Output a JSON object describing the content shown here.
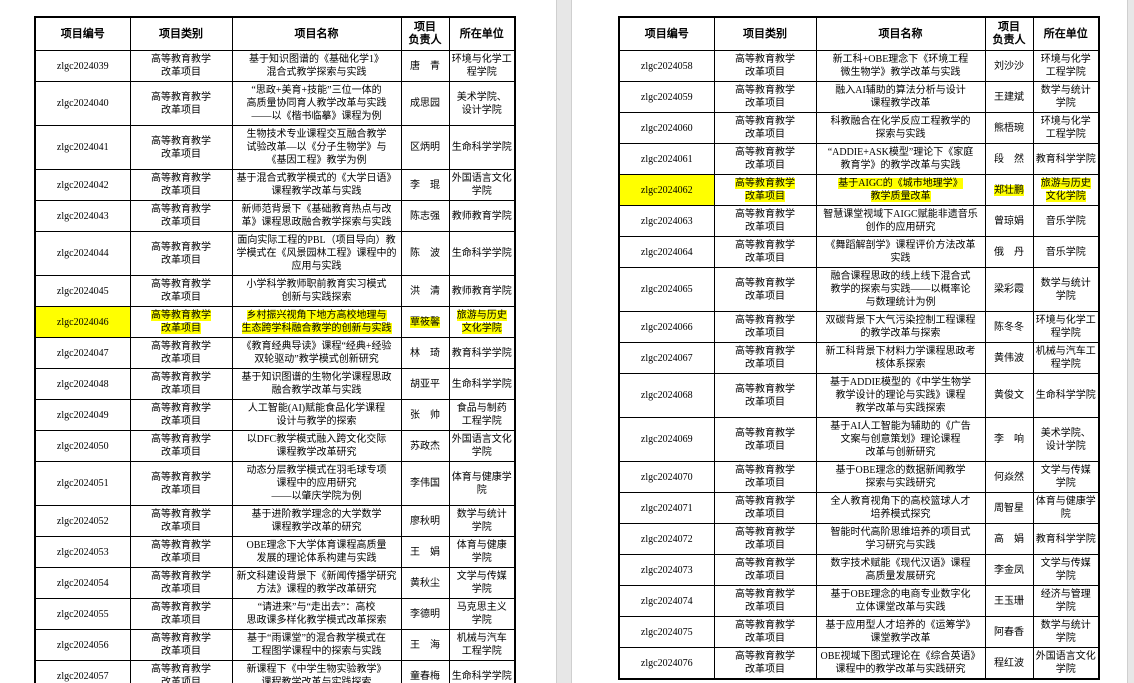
{
  "colors": {
    "highlight": "#ffff00",
    "table_border": "#000000",
    "page_background": "#ffffff",
    "divider": "#e7e7e7"
  },
  "columns": [
    "项目编号",
    "项目类别",
    "项目名称",
    "项目\n负责人",
    "所在单位"
  ],
  "pages": [
    {
      "name": "page-1",
      "rows": [
        {
          "id": "zlgc2024039",
          "category": "高等教育教学\n改革项目",
          "name": "基于知识图谱的《基础化学1》\n混合式教学探索与实践",
          "leader": "唐　青",
          "unit": "环境与化学工\n程学院",
          "highlighted": false
        },
        {
          "id": "zlgc2024040",
          "category": "高等教育教学\n改革项目",
          "name": "“思政+美育+技能”三位一体的\n高质量协同育人教学改革与实践\n——以《楷书临摹》课程为例",
          "leader": "成思园",
          "unit": "美术学院、\n设计学院",
          "highlighted": false
        },
        {
          "id": "zlgc2024041",
          "category": "高等教育教学\n改革项目",
          "name": "生物技术专业课程交互融合教学\n试验改革—以《分子生物学》与\n《基因工程》教学为例",
          "leader": "区炳明",
          "unit": "生命科学学院",
          "highlighted": false
        },
        {
          "id": "zlgc2024042",
          "category": "高等教育教学\n改革项目",
          "name": "基于混合式教学模式的《大学日语》\n课程教学改革与实践",
          "leader": "李　琨",
          "unit": "外国语言文化\n学院",
          "highlighted": false
        },
        {
          "id": "zlgc2024043",
          "category": "高等教育教学\n改革项目",
          "name": "新师范背景下《基础教育热点与改\n革》课程思政融合教学探索与实践",
          "leader": "陈志强",
          "unit": "教师教育学院",
          "highlighted": false
        },
        {
          "id": "zlgc2024044",
          "category": "高等教育教学\n改革项目",
          "name": "面向实际工程的PBL（项目导向）教\n学模式在《风景园林工程》课程中的\n应用与实践",
          "leader": "陈　波",
          "unit": "生命科学学院",
          "highlighted": false
        },
        {
          "id": "zlgc2024045",
          "category": "高等教育教学\n改革项目",
          "name": "小学科学教师职前教育实习模式\n创新与实践探索",
          "leader": "洪　清",
          "unit": "教师教育学院",
          "highlighted": false
        },
        {
          "id": "zlgc2024046",
          "category": "高等教育教学\n改革项目",
          "name": "乡村振兴视角下地方高校地理与\n生态跨学科融合教学的创新与实践",
          "leader": "覃筱馨",
          "unit": "旅游与历史\n文化学院",
          "highlighted": true
        },
        {
          "id": "zlgc2024047",
          "category": "高等教育教学\n改革项目",
          "name": "《教育经典导读》课程“经典+经验\n双轮驱动”教学模式创新研究",
          "leader": "林　琦",
          "unit": "教育科学学院",
          "highlighted": false
        },
        {
          "id": "zlgc2024048",
          "category": "高等教育教学\n改革项目",
          "name": "基于知识图谱的生物化学课程思政\n融合教学改革与实践",
          "leader": "胡亚平",
          "unit": "生命科学学院",
          "highlighted": false
        },
        {
          "id": "zlgc2024049",
          "category": "高等教育教学\n改革项目",
          "name": "人工智能(AI)赋能食品化学课程\n设计与教学的探索",
          "leader": "张　帅",
          "unit": "食品与制药\n工程学院",
          "highlighted": false
        },
        {
          "id": "zlgc2024050",
          "category": "高等教育教学\n改革项目",
          "name": "以DFC教学模式融入跨文化交际\n课程教学改革研究",
          "leader": "苏政杰",
          "unit": "外国语言文化\n学院",
          "highlighted": false
        },
        {
          "id": "zlgc2024051",
          "category": "高等教育教学\n改革项目",
          "name": "动态分层教学模式在羽毛球专项\n课程中的应用研究\n——以肇庆学院为例",
          "leader": "李伟国",
          "unit": "体育与健康学\n院",
          "highlighted": false
        },
        {
          "id": "zlgc2024052",
          "category": "高等教育教学\n改革项目",
          "name": "基于进阶教学理念的大学数学\n课程教学改革的研究",
          "leader": "廖秋明",
          "unit": "数学与统计\n学院",
          "highlighted": false
        },
        {
          "id": "zlgc2024053",
          "category": "高等教育教学\n改革项目",
          "name": "OBE理念下大学体育课程高质量\n发展的理论体系构建与实践",
          "leader": "王　娟",
          "unit": "体育与健康\n学院",
          "highlighted": false
        },
        {
          "id": "zlgc2024054",
          "category": "高等教育教学\n改革项目",
          "name": "新文科建设背景下《新闻传播学研究\n方法》课程的教学改革研究",
          "leader": "黄秋尘",
          "unit": "文学与传媒\n学院",
          "highlighted": false
        },
        {
          "id": "zlgc2024055",
          "category": "高等教育教学\n改革项目",
          "name": "“请进来”与“走出去”：高校\n思政课多样化教学模式改革探索",
          "leader": "李德明",
          "unit": "马克思主义\n学院",
          "highlighted": false
        },
        {
          "id": "zlgc2024056",
          "category": "高等教育教学\n改革项目",
          "name": "基于“雨课堂”的混合教学模式在\n工程图学课程中的探索与实践",
          "leader": "王　海",
          "unit": "机械与汽车\n工程学院",
          "highlighted": false
        },
        {
          "id": "zlgc2024057",
          "category": "高等教育教学\n改革项目",
          "name": "新课程下《中学生物实验教学》\n课程教学改革与实践探索",
          "leader": "童春梅",
          "unit": "生命科学学院",
          "highlighted": false
        }
      ]
    },
    {
      "name": "page-2",
      "rows": [
        {
          "id": "zlgc2024058",
          "category": "高等教育教学\n改革项目",
          "name": "新工科+OBE理念下《环境工程\n微生物学》教学改革与实践",
          "leader": "刘沙沙",
          "unit": "环境与化学\n工程学院",
          "highlighted": false
        },
        {
          "id": "zlgc2024059",
          "category": "高等教育教学\n改革项目",
          "name": "融入AI辅助的算法分析与设计\n课程教学改革",
          "leader": "王建斌",
          "unit": "数学与统计\n学院",
          "highlighted": false
        },
        {
          "id": "zlgc2024060",
          "category": "高等教育教学\n改革项目",
          "name": "科教融合在化学反应工程教学的\n探索与实践",
          "leader": "熊梧琬",
          "unit": "环境与化学\n工程学院",
          "highlighted": false
        },
        {
          "id": "zlgc2024061",
          "category": "高等教育教学\n改革项目",
          "name": "“ADDIE+ASK模型”理论下《家庭\n教育学》的教学改革与实践",
          "leader": "段　然",
          "unit": "教育科学学院",
          "highlighted": false
        },
        {
          "id": "zlgc2024062",
          "category": "高等教育教学\n改革项目",
          "name": "基于AIGC的《城市地理学》\n教学质量改革",
          "leader": "郑壮鹏",
          "unit": "旅游与历史\n文化学院",
          "highlighted": true
        },
        {
          "id": "zlgc2024063",
          "category": "高等教育教学\n改革项目",
          "name": "智慧课堂视域下AIGC赋能非遗音乐\n创作的应用研究",
          "leader": "曾琼娟",
          "unit": "音乐学院",
          "highlighted": false
        },
        {
          "id": "zlgc2024064",
          "category": "高等教育教学\n改革项目",
          "name": "《舞蹈解剖学》课程评价方法改革\n实践",
          "leader": "俄　丹",
          "unit": "音乐学院",
          "highlighted": false
        },
        {
          "id": "zlgc2024065",
          "category": "高等教育教学\n改革项目",
          "name": "融合课程思政的线上线下混合式\n教学的探索与实践——以概率论\n与数理统计为例",
          "leader": "梁彩霞",
          "unit": "数学与统计\n学院",
          "highlighted": false
        },
        {
          "id": "zlgc2024066",
          "category": "高等教育教学\n改革项目",
          "name": "双碳背景下大气污染控制工程课程\n的教学改革与探索",
          "leader": "陈冬冬",
          "unit": "环境与化学工\n程学院",
          "highlighted": false
        },
        {
          "id": "zlgc2024067",
          "category": "高等教育教学\n改革项目",
          "name": "新工科背景下材料力学课程思政考\n核体系探索",
          "leader": "黄伟波",
          "unit": "机械与汽车工\n程学院",
          "highlighted": false
        },
        {
          "id": "zlgc2024068",
          "category": "高等教育教学\n改革项目",
          "name": "基于ADDIE模型的《中学生物学\n教学设计的理论与实践》课程\n教学改革与实践探索",
          "leader": "黄俊文",
          "unit": "生命科学学院",
          "highlighted": false
        },
        {
          "id": "zlgc2024069",
          "category": "高等教育教学\n改革项目",
          "name": "基于AI人工智能为辅助的《广告\n文案与创意策划》理论课程\n改革与创新研究",
          "leader": "李　响",
          "unit": "美术学院、\n设计学院",
          "highlighted": false
        },
        {
          "id": "zlgc2024070",
          "category": "高等教育教学\n改革项目",
          "name": "基于OBE理念的数据新闻教学\n探索与实践研究",
          "leader": "何焱然",
          "unit": "文学与传媒\n学院",
          "highlighted": false
        },
        {
          "id": "zlgc2024071",
          "category": "高等教育教学\n改革项目",
          "name": "全人教育视角下的高校篮球人才\n培养模式探究",
          "leader": "周智星",
          "unit": "体育与健康学\n院",
          "highlighted": false
        },
        {
          "id": "zlgc2024072",
          "category": "高等教育教学\n改革项目",
          "name": "智能时代高阶思维培养的项目式\n学习研究与实践",
          "leader": "高　娟",
          "unit": "教育科学学院",
          "highlighted": false
        },
        {
          "id": "zlgc2024073",
          "category": "高等教育教学\n改革项目",
          "name": "数字技术赋能《现代汉语》课程\n高质量发展研究",
          "leader": "李金凤",
          "unit": "文学与传媒\n学院",
          "highlighted": false
        },
        {
          "id": "zlgc2024074",
          "category": "高等教育教学\n改革项目",
          "name": "基于OBE理念的电商专业数字化\n立体课堂改革与实践",
          "leader": "王玉珊",
          "unit": "经济与管理\n学院",
          "highlighted": false
        },
        {
          "id": "zlgc2024075",
          "category": "高等教育教学\n改革项目",
          "name": "基于应用型人才培养的《运筹学》\n课堂教学改革",
          "leader": "阿春香",
          "unit": "数学与统计\n学院",
          "highlighted": false
        },
        {
          "id": "zlgc2024076",
          "category": "高等教育教学\n改革项目",
          "name": "OBE视域下图式理论在《综合英语》\n课程中的教学改革与实践研究",
          "leader": "程红波",
          "unit": "外国语言文化\n学院",
          "highlighted": false
        }
      ]
    }
  ]
}
